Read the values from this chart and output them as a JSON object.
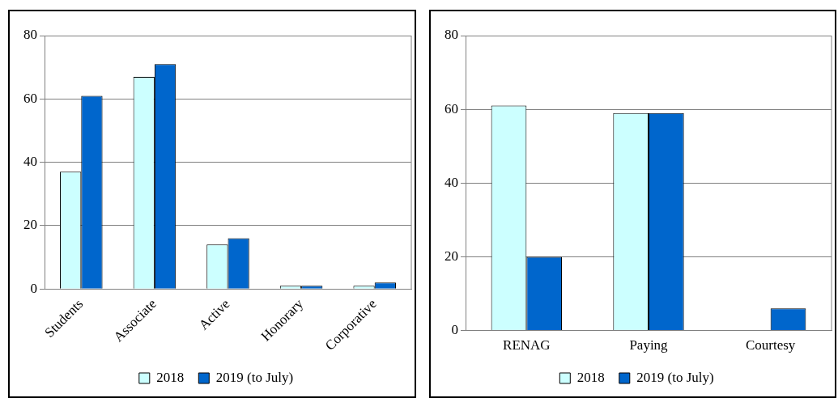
{
  "chart_data": [
    {
      "type": "bar",
      "categories": [
        "Students",
        "Associate",
        "Active",
        "Honorary",
        "Corporative"
      ],
      "series": [
        {
          "name": "2018",
          "color": "#ccffff",
          "values": [
            37,
            67,
            14,
            1,
            1
          ]
        },
        {
          "name": "2019 (to July)",
          "color": "#0066cc",
          "values": [
            61,
            71,
            16,
            1,
            2
          ]
        }
      ],
      "ylim": [
        0,
        80
      ],
      "yticks": [
        0,
        20,
        40,
        60,
        80
      ],
      "grid": "y",
      "legend": "bottom"
    },
    {
      "type": "bar",
      "categories": [
        "RENAG",
        "Paying",
        "Courtesy"
      ],
      "series": [
        {
          "name": "2018",
          "color": "#ccffff",
          "values": [
            61,
            59,
            0
          ]
        },
        {
          "name": "2019 (to July)",
          "color": "#0066cc",
          "values": [
            20,
            59,
            6
          ]
        }
      ],
      "ylim": [
        0,
        80
      ],
      "yticks": [
        0,
        20,
        40,
        60,
        80
      ],
      "grid": "y",
      "legend": "bottom"
    }
  ]
}
